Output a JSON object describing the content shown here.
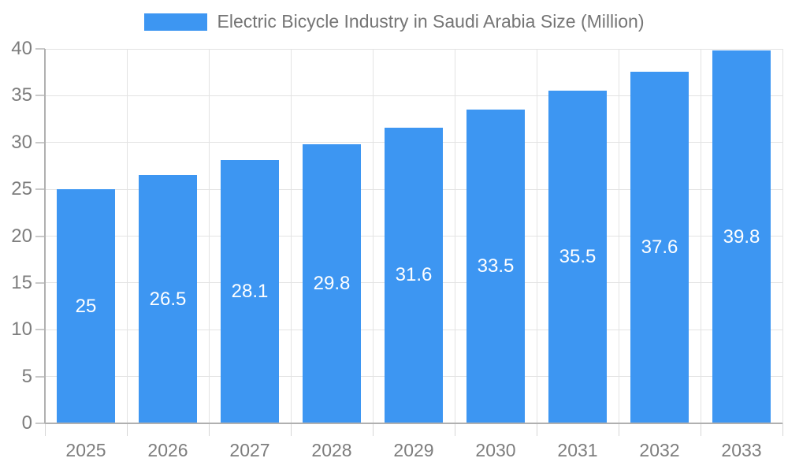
{
  "chart_data": {
    "type": "bar",
    "title": "Electric Bicycle Industry in Saudi Arabia Size (Million)",
    "categories": [
      "2025",
      "2026",
      "2027",
      "2028",
      "2029",
      "2030",
      "2031",
      "2032",
      "2033"
    ],
    "values": [
      25,
      26.5,
      28.1,
      29.8,
      31.6,
      33.5,
      35.5,
      37.6,
      39.8
    ],
    "value_labels": [
      "25",
      "26.5",
      "28.1",
      "29.8",
      "31.6",
      "33.5",
      "35.5",
      "37.6",
      "39.8"
    ],
    "xlabel": "",
    "ylabel": "",
    "ylim": [
      0,
      40
    ],
    "yticks": [
      0,
      5,
      10,
      15,
      20,
      25,
      30,
      35,
      40
    ],
    "grid": true,
    "legend_position": "top-center",
    "value_label_position": "inside-center",
    "colors": {
      "bar": "#3d96f2",
      "grid": "#e3e3e3",
      "axis": "#b0b0b0",
      "tick": "#c9c9c9",
      "boundary_tick": "#d6d6d6",
      "axis_label": "#7d7d7d",
      "title": "#757575",
      "value_label": "#ffffff",
      "background": "#ffffff"
    }
  }
}
